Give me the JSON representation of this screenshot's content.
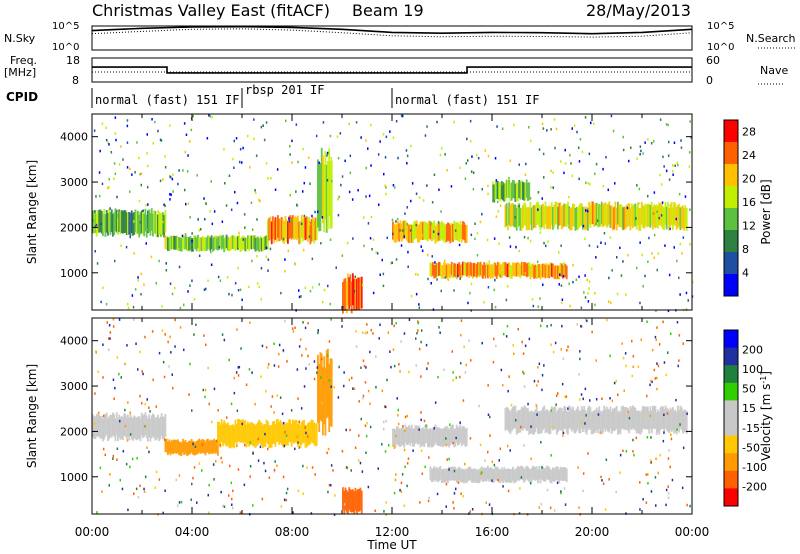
{
  "header": {
    "title": "Christmas Valley East (fitACF)",
    "beam": "Beam 19",
    "date": "28/May/2013"
  },
  "top_panels": {
    "sky_label": "N.Sky",
    "sky_ticks": [
      "10^5",
      "10^0"
    ],
    "search_label": "N.Search",
    "search_ticks": [
      "10^5",
      "10^0"
    ],
    "freq_label_1": "Freq.",
    "freq_label_2": "[MHz]",
    "freq_ticks": [
      "18",
      "8"
    ],
    "nave_label": "Nave",
    "nave_ticks": [
      "60",
      "0"
    ],
    "cpid_label": "CPID",
    "cpid_segments": [
      {
        "label": "normal (fast) 151 IF",
        "start_h": 0,
        "end_h": 6
      },
      {
        "label": "rbsp 201 IF",
        "start_h": 6,
        "end_h": 12
      },
      {
        "label": "normal (fast) 151 IF",
        "start_h": 12,
        "end_h": 24
      }
    ]
  },
  "colors": {
    "power": [
      "#0000ff",
      "#1f4fa0",
      "#2d8040",
      "#5cc040",
      "#c0f000",
      "#ffc000",
      "#ff6000",
      "#ff0000"
    ],
    "velocity": [
      "#ff0000",
      "#ff6000",
      "#ff9a00",
      "#ffc800",
      "#c8c8c8",
      "#c8c8c8",
      "#30d000",
      "#208040",
      "#2030a0",
      "#0000ff"
    ]
  },
  "chart_data": [
    {
      "type": "line",
      "panel": "N.Sky / N.Search",
      "x": [
        0,
        2,
        4,
        6,
        8,
        10,
        12,
        14,
        16,
        18,
        20,
        22,
        24
      ],
      "series": [
        {
          "name": "N.Sky",
          "values": [
            15000,
            50000,
            100000,
            120000,
            80000,
            30000,
            6000,
            4000,
            6000,
            5000,
            3000,
            6000,
            30000
          ]
        },
        {
          "name": "N.Search",
          "values": [
            3000,
            10000,
            30000,
            40000,
            20000,
            5000,
            1000,
            600,
            800,
            700,
            500,
            800,
            5000
          ]
        }
      ],
      "yscale": "log"
    },
    {
      "type": "line",
      "panel": "Freq. / Nave",
      "x": [
        0,
        3,
        3,
        15,
        15,
        24
      ],
      "series": [
        {
          "name": "Freq.",
          "values": [
            14.2,
            14.2,
            11.8,
            11.8,
            14.2,
            14.2
          ]
        },
        {
          "name": "Nave",
          "values": [
            25,
            25,
            25,
            25,
            25,
            25
          ]
        }
      ],
      "ylim": [
        8,
        18
      ]
    },
    {
      "type": "heatmap",
      "panel": "Power",
      "xlabel": "Time UT",
      "ylabel": "Slant Range [km]",
      "xlim": [
        0,
        24
      ],
      "ylim": [
        180,
        4500
      ],
      "x_ticks": [
        "00:00",
        "04:00",
        "08:00",
        "12:00",
        "16:00",
        "20:00",
        "00:00"
      ],
      "y_ticks": [
        1000,
        2000,
        3000,
        4000
      ],
      "colorbar_label": "Power [dB]",
      "colorbar_ticks": [
        4,
        8,
        12,
        16,
        20,
        24,
        28
      ],
      "colorbar_range": [
        0,
        30
      ],
      "bands": [
        {
          "h0": 0,
          "h1": 2.9,
          "r0": 1850,
          "r1": 2350,
          "value": 12
        },
        {
          "h0": 2.9,
          "h1": 7,
          "r0": 1500,
          "r1": 1800,
          "value": 14
        },
        {
          "h0": 7,
          "h1": 9,
          "r0": 1700,
          "r1": 2200,
          "value": 22
        },
        {
          "h0": 9,
          "h1": 9.6,
          "r0": 2100,
          "r1": 3600,
          "value": 16
        },
        {
          "h0": 10,
          "h1": 10.8,
          "r0": 200,
          "r1": 900,
          "value": 26
        },
        {
          "h0": 12,
          "h1": 15,
          "r0": 1700,
          "r1": 2100,
          "value": 20
        },
        {
          "h0": 13.5,
          "h1": 19,
          "r0": 900,
          "r1": 1200,
          "value": 22
        },
        {
          "h0": 16.5,
          "h1": 23.8,
          "r0": 2000,
          "r1": 2500,
          "value": 18
        },
        {
          "h0": 16,
          "h1": 17.5,
          "r0": 2600,
          "r1": 3000,
          "value": 14
        }
      ]
    },
    {
      "type": "heatmap",
      "panel": "Velocity",
      "xlabel": "Time UT",
      "ylabel": "Slant Range [km]",
      "xlim": [
        0,
        24
      ],
      "ylim": [
        180,
        4500
      ],
      "x_ticks": [
        "00:00",
        "04:00",
        "08:00",
        "12:00",
        "16:00",
        "20:00",
        "00:00"
      ],
      "y_ticks": [
        1000,
        2000,
        3000,
        4000
      ],
      "colorbar_label": "Velocity [m s^-1]",
      "colorbar_ticks": [
        200,
        100,
        50,
        15,
        -15,
        -50,
        -100,
        -200
      ],
      "bands": [
        {
          "h0": 0,
          "h1": 2.9,
          "r0": 1850,
          "r1": 2350,
          "value": 0
        },
        {
          "h0": 2.9,
          "h1": 5,
          "r0": 1500,
          "r1": 1800,
          "value": -60
        },
        {
          "h0": 5,
          "h1": 9,
          "r0": 1700,
          "r1": 2200,
          "value": -40
        },
        {
          "h0": 9,
          "h1": 9.6,
          "r0": 2100,
          "r1": 3600,
          "value": -80
        },
        {
          "h0": 10,
          "h1": 10.8,
          "r0": 200,
          "r1": 700,
          "value": -150
        },
        {
          "h0": 12,
          "h1": 15,
          "r0": 1700,
          "r1": 2100,
          "value": 0
        },
        {
          "h0": 13.5,
          "h1": 19,
          "r0": 900,
          "r1": 1200,
          "value": 0
        },
        {
          "h0": 16.5,
          "h1": 23.8,
          "r0": 2000,
          "r1": 2500,
          "value": 0
        }
      ]
    }
  ]
}
